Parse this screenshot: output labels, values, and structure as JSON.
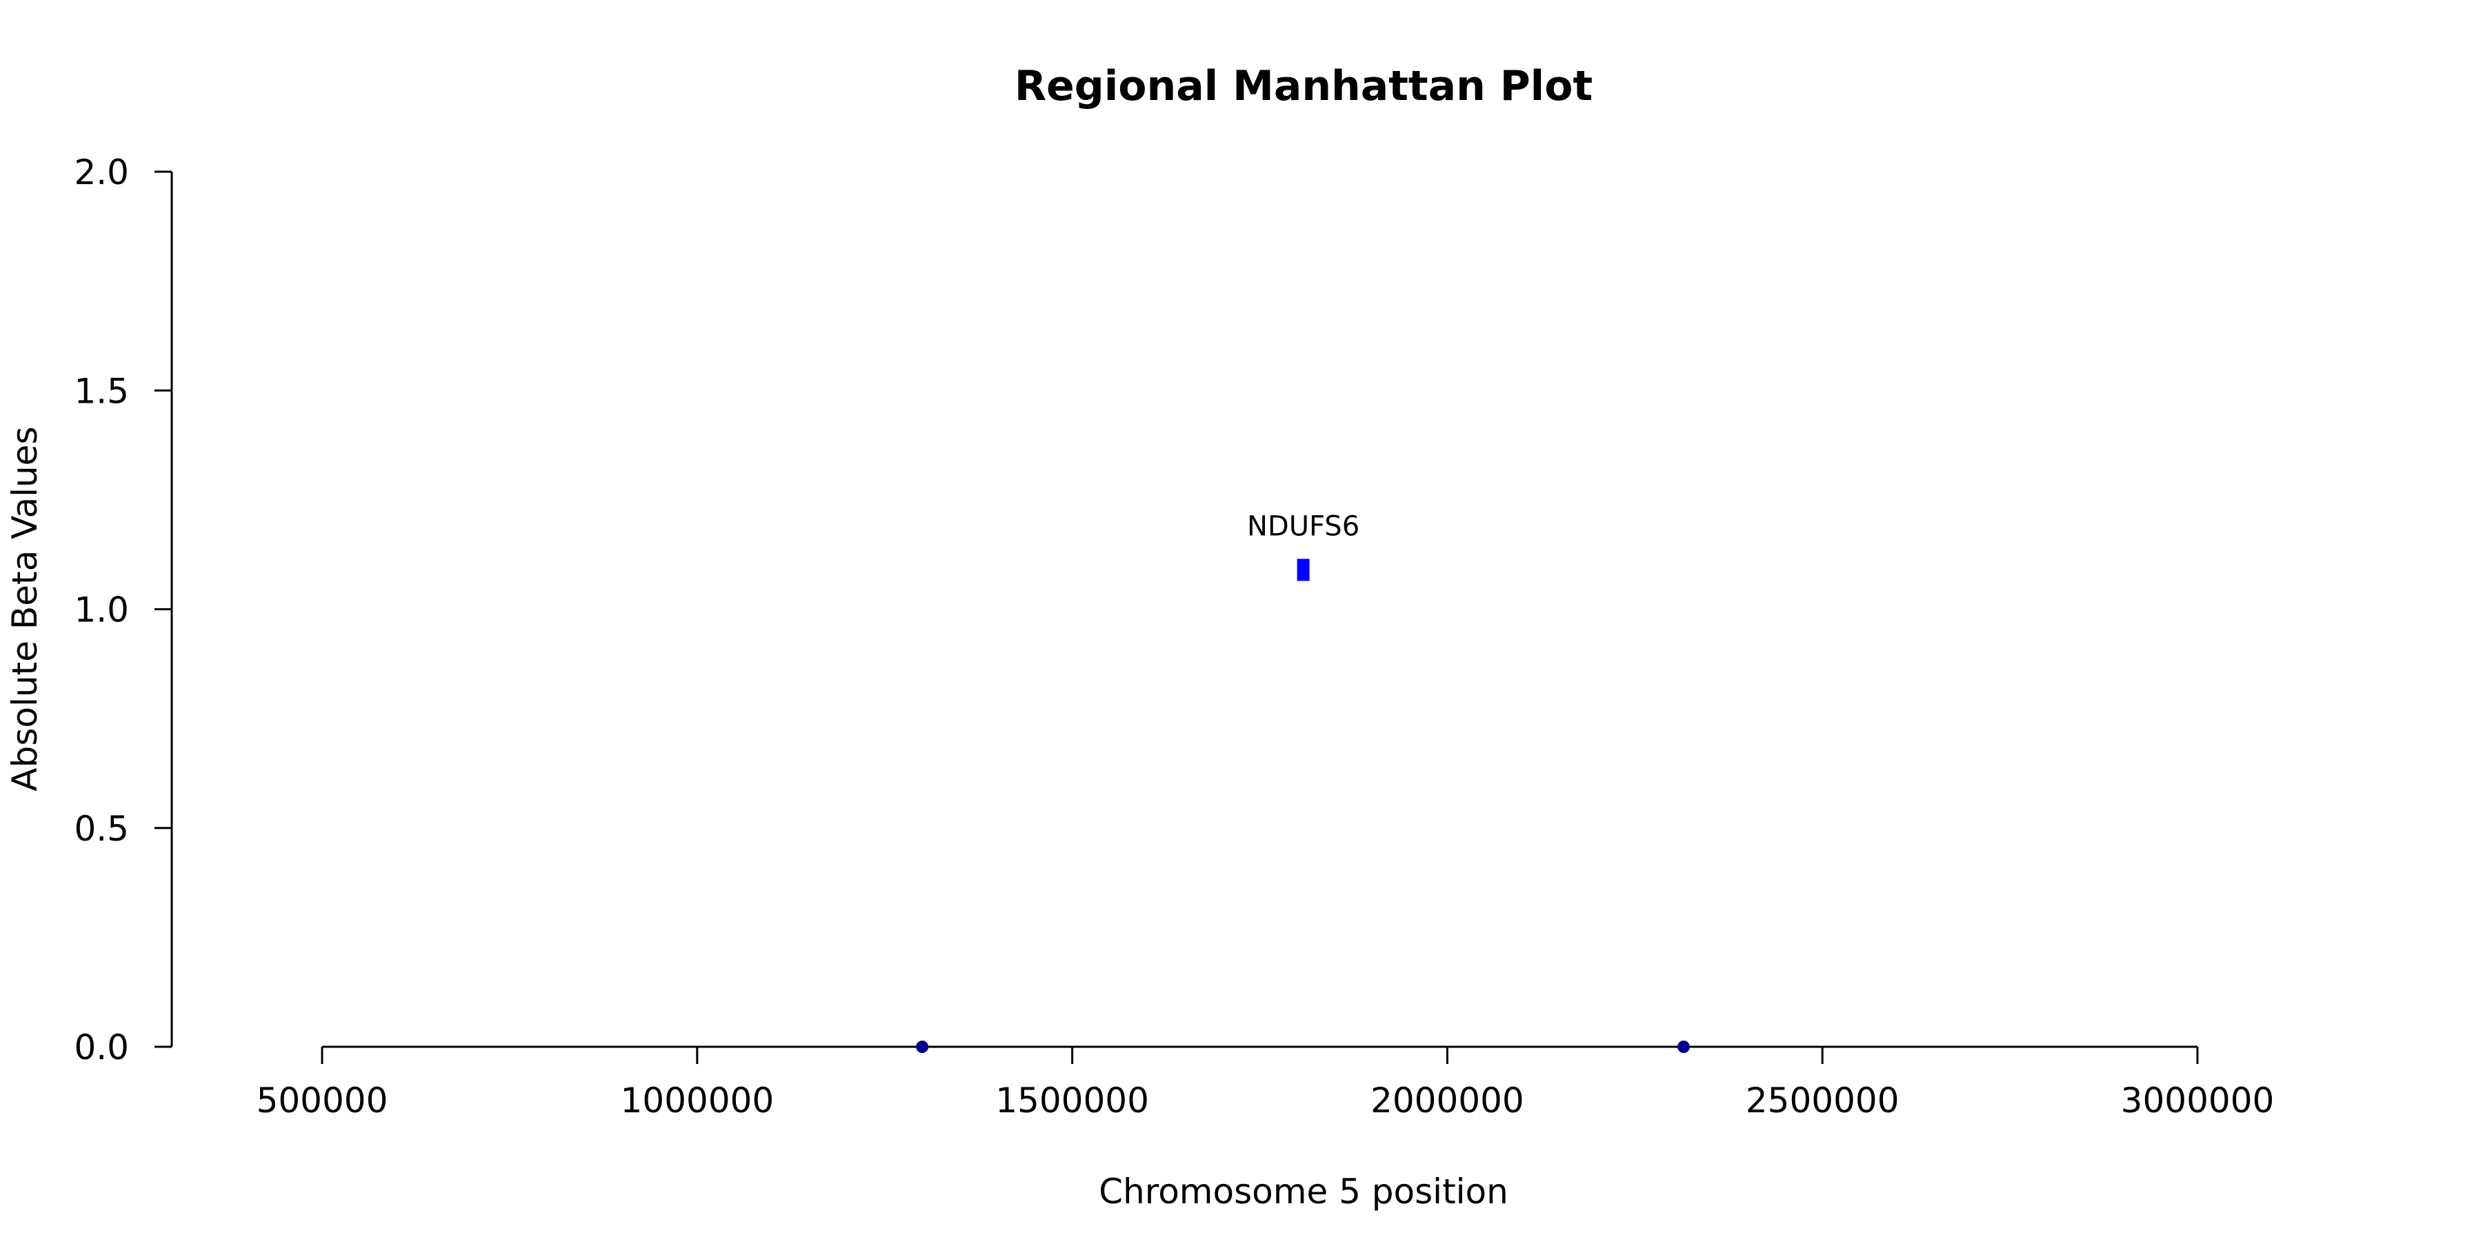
{
  "chart_data": {
    "type": "scatter",
    "title": "Regional Manhattan Plot",
    "xlabel": "Chromosome 5 position",
    "ylabel": "Absolute Beta Values",
    "xlim": [
      500000,
      3000000
    ],
    "ylim": [
      0,
      2
    ],
    "xticks": [
      500000,
      1000000,
      1500000,
      2000000,
      2500000,
      3000000
    ],
    "xtick_labels": [
      "500000",
      "1000000",
      "1500000",
      "2000000",
      "2500000",
      "3000000"
    ],
    "yticks": [
      0,
      0.5,
      1,
      1.5,
      2
    ],
    "ytick_labels": [
      "0.0",
      "0.5",
      "1.0",
      "1.5",
      "2.0"
    ],
    "grid": false,
    "points": [
      {
        "x": 1300000,
        "y": 0,
        "color": "#00008b",
        "shape": "circle"
      },
      {
        "x": 2315000,
        "y": 0,
        "color": "#00008b",
        "shape": "circle"
      },
      {
        "x": 1808000,
        "y": 1.09,
        "color": "#0000ff",
        "shape": "square",
        "label": "NDUFS6"
      }
    ],
    "annotations": [
      {
        "text": "NDUFS6",
        "x": 1808000,
        "y": 1.09
      }
    ]
  }
}
